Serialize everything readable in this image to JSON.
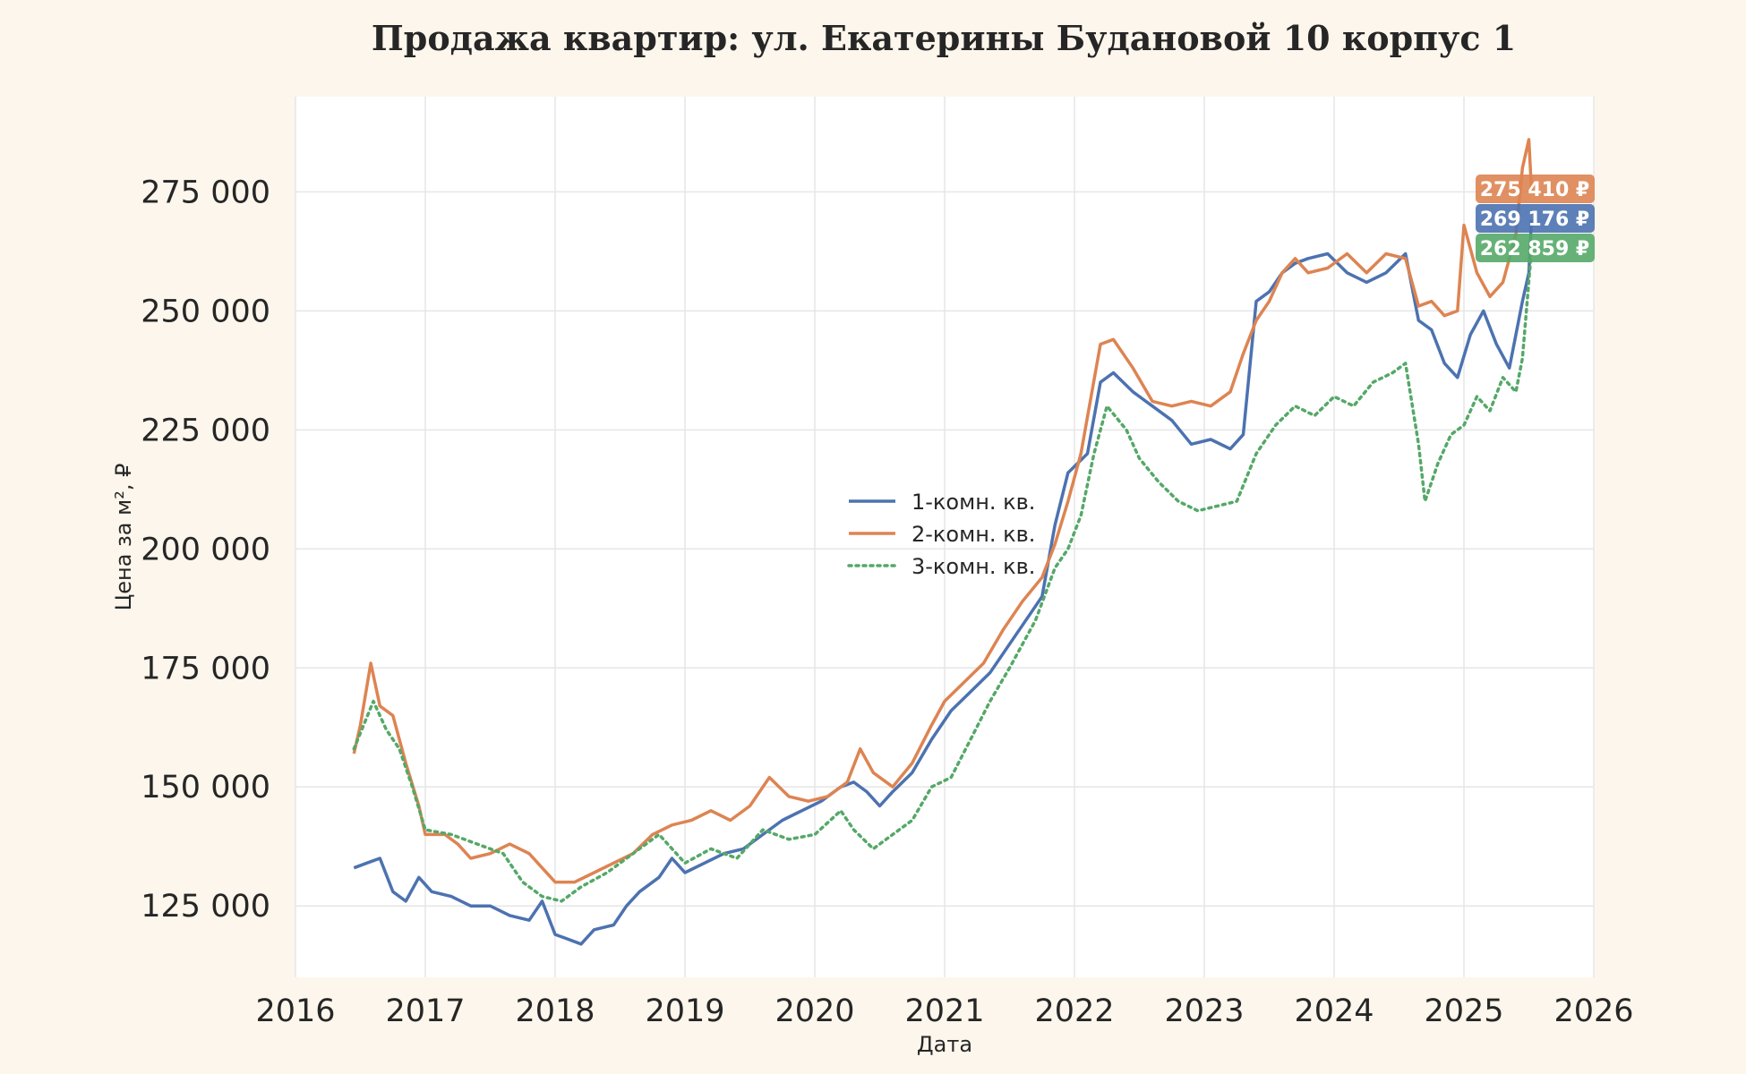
{
  "chart_data": {
    "type": "line",
    "title": "Продажа квартир: ул. Екатерины Будановой 10 корпус 1",
    "xlabel": "Дата",
    "ylabel": "Цена за м², ₽",
    "xlim": [
      2016.0,
      2026.0
    ],
    "ylim": [
      110000,
      295000
    ],
    "x_ticks": [
      2016,
      2017,
      2018,
      2019,
      2020,
      2021,
      2022,
      2023,
      2024,
      2025,
      2026
    ],
    "x_tick_labels": [
      "2016",
      "2017",
      "2018",
      "2019",
      "2020",
      "2021",
      "2022",
      "2023",
      "2024",
      "2025",
      "2026"
    ],
    "y_ticks": [
      125000,
      150000,
      175000,
      200000,
      225000,
      250000,
      275000
    ],
    "y_tick_labels": [
      "125 000",
      "150 000",
      "175 000",
      "200 000",
      "225 000",
      "250 000",
      "275 000"
    ],
    "grid": true,
    "legend_position": "center",
    "series": [
      {
        "name": "1-комн. кв.",
        "color": "#4c72b0",
        "style": "solid",
        "last_label": "269 176 ₽",
        "points": [
          [
            2016.45,
            133000
          ],
          [
            2016.55,
            134000
          ],
          [
            2016.65,
            135000
          ],
          [
            2016.75,
            128000
          ],
          [
            2016.85,
            126000
          ],
          [
            2016.95,
            131000
          ],
          [
            2017.05,
            128000
          ],
          [
            2017.2,
            127000
          ],
          [
            2017.35,
            125000
          ],
          [
            2017.5,
            125000
          ],
          [
            2017.65,
            123000
          ],
          [
            2017.8,
            122000
          ],
          [
            2017.9,
            126000
          ],
          [
            2018.0,
            119000
          ],
          [
            2018.1,
            118000
          ],
          [
            2018.2,
            117000
          ],
          [
            2018.3,
            120000
          ],
          [
            2018.45,
            121000
          ],
          [
            2018.55,
            125000
          ],
          [
            2018.65,
            128000
          ],
          [
            2018.8,
            131000
          ],
          [
            2018.9,
            135000
          ],
          [
            2019.0,
            132000
          ],
          [
            2019.15,
            134000
          ],
          [
            2019.3,
            136000
          ],
          [
            2019.45,
            137000
          ],
          [
            2019.6,
            140000
          ],
          [
            2019.75,
            143000
          ],
          [
            2019.9,
            145000
          ],
          [
            2020.05,
            147000
          ],
          [
            2020.2,
            150000
          ],
          [
            2020.3,
            151000
          ],
          [
            2020.4,
            149000
          ],
          [
            2020.5,
            146000
          ],
          [
            2020.6,
            149000
          ],
          [
            2020.75,
            153000
          ],
          [
            2020.9,
            160000
          ],
          [
            2021.05,
            166000
          ],
          [
            2021.2,
            170000
          ],
          [
            2021.35,
            174000
          ],
          [
            2021.5,
            180000
          ],
          [
            2021.65,
            186000
          ],
          [
            2021.75,
            190000
          ],
          [
            2021.85,
            205000
          ],
          [
            2021.95,
            216000
          ],
          [
            2022.1,
            220000
          ],
          [
            2022.2,
            235000
          ],
          [
            2022.3,
            237000
          ],
          [
            2022.45,
            233000
          ],
          [
            2022.6,
            230000
          ],
          [
            2022.75,
            227000
          ],
          [
            2022.9,
            222000
          ],
          [
            2023.05,
            223000
          ],
          [
            2023.2,
            221000
          ],
          [
            2023.3,
            224000
          ],
          [
            2023.4,
            252000
          ],
          [
            2023.5,
            254000
          ],
          [
            2023.6,
            258000
          ],
          [
            2023.7,
            260000
          ],
          [
            2023.8,
            261000
          ],
          [
            2023.95,
            262000
          ],
          [
            2024.1,
            258000
          ],
          [
            2024.25,
            256000
          ],
          [
            2024.4,
            258000
          ],
          [
            2024.55,
            262000
          ],
          [
            2024.65,
            248000
          ],
          [
            2024.75,
            246000
          ],
          [
            2024.85,
            239000
          ],
          [
            2024.95,
            236000
          ],
          [
            2025.05,
            245000
          ],
          [
            2025.15,
            250000
          ],
          [
            2025.25,
            243000
          ],
          [
            2025.35,
            238000
          ],
          [
            2025.45,
            252000
          ],
          [
            2025.5,
            258000
          ],
          [
            2025.52,
            269176
          ]
        ]
      },
      {
        "name": "2-комн. кв.",
        "color": "#dd8452",
        "style": "solid",
        "last_label": "275 410 ₽",
        "points": [
          [
            2016.45,
            157000
          ],
          [
            2016.5,
            163000
          ],
          [
            2016.58,
            176000
          ],
          [
            2016.65,
            167000
          ],
          [
            2016.75,
            165000
          ],
          [
            2016.85,
            155000
          ],
          [
            2016.95,
            146000
          ],
          [
            2017.0,
            140000
          ],
          [
            2017.15,
            140000
          ],
          [
            2017.25,
            138000
          ],
          [
            2017.35,
            135000
          ],
          [
            2017.5,
            136000
          ],
          [
            2017.65,
            138000
          ],
          [
            2017.8,
            136000
          ],
          [
            2017.9,
            133000
          ],
          [
            2018.0,
            130000
          ],
          [
            2018.15,
            130000
          ],
          [
            2018.3,
            132000
          ],
          [
            2018.45,
            134000
          ],
          [
            2018.6,
            136000
          ],
          [
            2018.75,
            140000
          ],
          [
            2018.9,
            142000
          ],
          [
            2019.05,
            143000
          ],
          [
            2019.2,
            145000
          ],
          [
            2019.35,
            143000
          ],
          [
            2019.5,
            146000
          ],
          [
            2019.65,
            152000
          ],
          [
            2019.8,
            148000
          ],
          [
            2019.95,
            147000
          ],
          [
            2020.1,
            148000
          ],
          [
            2020.25,
            151000
          ],
          [
            2020.35,
            158000
          ],
          [
            2020.45,
            153000
          ],
          [
            2020.6,
            150000
          ],
          [
            2020.75,
            155000
          ],
          [
            2020.9,
            163000
          ],
          [
            2021.0,
            168000
          ],
          [
            2021.15,
            172000
          ],
          [
            2021.3,
            176000
          ],
          [
            2021.45,
            183000
          ],
          [
            2021.6,
            189000
          ],
          [
            2021.75,
            194000
          ],
          [
            2021.85,
            201000
          ],
          [
            2021.95,
            210000
          ],
          [
            2022.05,
            220000
          ],
          [
            2022.2,
            243000
          ],
          [
            2022.3,
            244000
          ],
          [
            2022.45,
            238000
          ],
          [
            2022.6,
            231000
          ],
          [
            2022.75,
            230000
          ],
          [
            2022.9,
            231000
          ],
          [
            2023.05,
            230000
          ],
          [
            2023.2,
            233000
          ],
          [
            2023.3,
            241000
          ],
          [
            2023.4,
            248000
          ],
          [
            2023.5,
            252000
          ],
          [
            2023.6,
            258000
          ],
          [
            2023.7,
            261000
          ],
          [
            2023.8,
            258000
          ],
          [
            2023.95,
            259000
          ],
          [
            2024.1,
            262000
          ],
          [
            2024.25,
            258000
          ],
          [
            2024.4,
            262000
          ],
          [
            2024.55,
            261000
          ],
          [
            2024.65,
            251000
          ],
          [
            2024.75,
            252000
          ],
          [
            2024.85,
            249000
          ],
          [
            2024.95,
            250000
          ],
          [
            2025.0,
            268000
          ],
          [
            2025.1,
            258000
          ],
          [
            2025.2,
            253000
          ],
          [
            2025.3,
            256000
          ],
          [
            2025.4,
            266000
          ],
          [
            2025.45,
            280000
          ],
          [
            2025.5,
            286000
          ],
          [
            2025.52,
            275410
          ]
        ]
      },
      {
        "name": "3-комн. кв.",
        "color": "#55a868",
        "style": "dotted",
        "last_label": "262 859 ₽",
        "points": [
          [
            2016.45,
            158000
          ],
          [
            2016.6,
            168000
          ],
          [
            2016.7,
            162000
          ],
          [
            2016.8,
            158000
          ],
          [
            2016.9,
            150000
          ],
          [
            2017.0,
            141000
          ],
          [
            2017.2,
            140000
          ],
          [
            2017.4,
            138000
          ],
          [
            2017.6,
            136000
          ],
          [
            2017.75,
            130000
          ],
          [
            2017.9,
            127000
          ],
          [
            2018.05,
            126000
          ],
          [
            2018.2,
            129000
          ],
          [
            2018.4,
            132000
          ],
          [
            2018.6,
            136000
          ],
          [
            2018.8,
            140000
          ],
          [
            2019.0,
            134000
          ],
          [
            2019.2,
            137000
          ],
          [
            2019.4,
            135000
          ],
          [
            2019.6,
            141000
          ],
          [
            2019.8,
            139000
          ],
          [
            2020.0,
            140000
          ],
          [
            2020.2,
            145000
          ],
          [
            2020.3,
            141000
          ],
          [
            2020.45,
            137000
          ],
          [
            2020.6,
            140000
          ],
          [
            2020.75,
            143000
          ],
          [
            2020.9,
            150000
          ],
          [
            2021.05,
            152000
          ],
          [
            2021.2,
            160000
          ],
          [
            2021.35,
            168000
          ],
          [
            2021.5,
            175000
          ],
          [
            2021.7,
            185000
          ],
          [
            2021.85,
            196000
          ],
          [
            2021.95,
            200000
          ],
          [
            2022.05,
            207000
          ],
          [
            2022.15,
            220000
          ],
          [
            2022.25,
            230000
          ],
          [
            2022.4,
            225000
          ],
          [
            2022.5,
            219000
          ],
          [
            2022.65,
            214000
          ],
          [
            2022.8,
            210000
          ],
          [
            2022.95,
            208000
          ],
          [
            2023.1,
            209000
          ],
          [
            2023.25,
            210000
          ],
          [
            2023.4,
            220000
          ],
          [
            2023.55,
            226000
          ],
          [
            2023.7,
            230000
          ],
          [
            2023.85,
            228000
          ],
          [
            2024.0,
            232000
          ],
          [
            2024.15,
            230000
          ],
          [
            2024.3,
            235000
          ],
          [
            2024.45,
            237000
          ],
          [
            2024.55,
            239000
          ],
          [
            2024.65,
            222000
          ],
          [
            2024.7,
            210000
          ],
          [
            2024.8,
            218000
          ],
          [
            2024.9,
            224000
          ],
          [
            2025.0,
            226000
          ],
          [
            2025.1,
            232000
          ],
          [
            2025.2,
            229000
          ],
          [
            2025.3,
            236000
          ],
          [
            2025.4,
            233000
          ],
          [
            2025.45,
            240000
          ],
          [
            2025.52,
            262859
          ]
        ]
      }
    ],
    "legend": {
      "items": [
        {
          "label": "1-комн. кв.",
          "color": "#4c72b0",
          "style": "solid"
        },
        {
          "label": "2-комн. кв.",
          "color": "#dd8452",
          "style": "solid"
        },
        {
          "label": "3-комн. кв.",
          "color": "#55a868",
          "style": "dotted"
        }
      ]
    },
    "end_tags": [
      {
        "label": "275 410 ₽",
        "color": "#dd8452"
      },
      {
        "label": "269 176 ₽",
        "color": "#4c72b0"
      },
      {
        "label": "262 859 ₽",
        "color": "#55a868"
      }
    ]
  }
}
